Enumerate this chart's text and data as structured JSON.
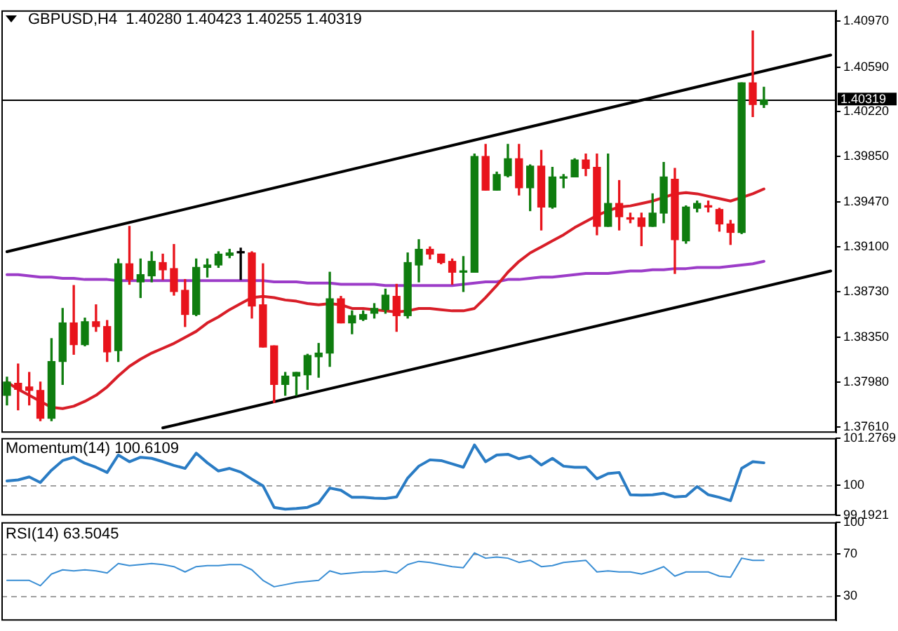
{
  "chart_data": [
    {
      "type": "candlestick",
      "title": "GBPUSD,H4  1.40280 1.40423 1.40255 1.40319",
      "categories": [
        null,
        null,
        null,
        null,
        null,
        null,
        null,
        null,
        null,
        null,
        null,
        null,
        null,
        null,
        null,
        null,
        null,
        null,
        null,
        null,
        null,
        null,
        null,
        null,
        null,
        null,
        null,
        null,
        null,
        null,
        null,
        null,
        null,
        null,
        null,
        null,
        null,
        null,
        null,
        null,
        null,
        null,
        null,
        null,
        null,
        null,
        null,
        null,
        null,
        null,
        null,
        null,
        null,
        null,
        null,
        null,
        null,
        null,
        null,
        null,
        null,
        null,
        null,
        null,
        null,
        null,
        null,
        null,
        null,
        null,
        null,
        null,
        null,
        null,
        null
      ],
      "ohlc": [
        [
          1.3787,
          1.3802,
          1.3779,
          1.3798
        ],
        [
          1.3797,
          1.3813,
          1.3775,
          1.3792
        ],
        [
          1.3794,
          1.3806,
          1.3779,
          1.3791
        ],
        [
          1.3791,
          1.3798,
          1.3766,
          1.3768
        ],
        [
          1.3768,
          1.3834,
          1.3766,
          1.3815
        ],
        [
          1.3815,
          1.3859,
          1.3796,
          1.3847
        ],
        [
          1.3847,
          1.3878,
          1.3821,
          1.3829
        ],
        [
          1.3829,
          1.3851,
          1.3828,
          1.3848
        ],
        [
          1.3848,
          1.3862,
          1.384,
          1.3844
        ],
        [
          1.3844,
          1.3849,
          1.3815,
          1.3823
        ],
        [
          1.3824,
          1.39,
          1.3815,
          1.3896
        ],
        [
          1.3896,
          1.3927,
          1.3879,
          1.3883
        ],
        [
          1.3881,
          1.39,
          1.3868,
          1.3887
        ],
        [
          1.3886,
          1.3906,
          1.3881,
          1.3898
        ],
        [
          1.3897,
          1.3904,
          1.3883,
          1.3891
        ],
        [
          1.3892,
          1.3912,
          1.387,
          1.3873
        ],
        [
          1.3874,
          1.3883,
          1.3844,
          1.3854
        ],
        [
          1.3854,
          1.39,
          1.3853,
          1.3893
        ],
        [
          1.3893,
          1.39,
          1.3885,
          1.3895
        ],
        [
          1.3895,
          1.3906,
          1.3893,
          1.3904
        ],
        [
          1.3903,
          1.3908,
          1.3901,
          1.3905
        ],
        [
          1.3905,
          1.3909,
          1.3883,
          1.3905
        ],
        [
          1.3905,
          1.3906,
          1.3851,
          1.3861
        ],
        [
          1.3862,
          1.3896,
          1.3827,
          1.3827
        ],
        [
          1.3828,
          1.3828,
          1.3781,
          1.3796
        ],
        [
          1.3796,
          1.3806,
          1.3787,
          1.3803
        ],
        [
          1.3803,
          1.3806,
          1.3787,
          1.3806
        ],
        [
          1.3804,
          1.3821,
          1.3792,
          1.382
        ],
        [
          1.3819,
          1.383,
          1.3802,
          1.3822
        ],
        [
          1.3822,
          1.3889,
          1.3811,
          1.3867
        ],
        [
          1.3867,
          1.3869,
          1.3847,
          1.3847
        ],
        [
          1.3847,
          1.3857,
          1.3838,
          1.3853
        ],
        [
          1.385,
          1.3857,
          1.3849,
          1.3854
        ],
        [
          1.3855,
          1.3863,
          1.3851,
          1.3859
        ],
        [
          1.3858,
          1.3875,
          1.3855,
          1.387
        ],
        [
          1.3869,
          1.3879,
          1.384,
          1.3853
        ],
        [
          1.3853,
          1.3905,
          1.3851,
          1.3897
        ],
        [
          1.3895,
          1.3916,
          1.3881,
          1.3908
        ],
        [
          1.3908,
          1.391,
          1.39,
          1.3904
        ],
        [
          1.3904,
          1.3904,
          1.3896,
          1.3897
        ],
        [
          1.3898,
          1.39,
          1.3879,
          1.3889
        ],
        [
          1.3889,
          1.3902,
          1.3873,
          1.389
        ],
        [
          1.3889,
          1.3987,
          1.3889,
          1.3985
        ],
        [
          1.3985,
          1.3995,
          1.3957,
          1.3957
        ],
        [
          1.3957,
          1.3972,
          1.3957,
          1.397
        ],
        [
          1.3969,
          1.3995,
          1.3968,
          1.3983
        ],
        [
          1.3983,
          1.3995,
          1.3953,
          1.3959
        ],
        [
          1.3959,
          1.3978,
          1.394,
          1.3977
        ],
        [
          1.3977,
          1.399,
          1.3924,
          1.3943
        ],
        [
          1.3943,
          1.3976,
          1.3942,
          1.3968
        ],
        [
          1.3967,
          1.397,
          1.3959,
          1.3968
        ],
        [
          1.3968,
          1.3983,
          1.3968,
          1.3982
        ],
        [
          1.3982,
          1.3987,
          1.3969,
          1.3975
        ],
        [
          1.3976,
          1.3987,
          1.392,
          1.3927
        ],
        [
          1.3927,
          1.3987,
          1.3927,
          1.3946
        ],
        [
          1.3946,
          1.3965,
          1.3924,
          1.3935
        ],
        [
          1.3934,
          1.3938,
          1.393,
          1.3933
        ],
        [
          1.3934,
          1.3938,
          1.3911,
          1.3927
        ],
        [
          1.3927,
          1.3954,
          1.3927,
          1.3938
        ],
        [
          1.3938,
          1.398,
          1.393,
          1.3968
        ],
        [
          1.3966,
          1.3975,
          1.3888,
          1.3916
        ],
        [
          1.3915,
          1.3944,
          1.3913,
          1.3943
        ],
        [
          1.3942,
          1.3948,
          1.3939,
          1.3946
        ],
        [
          1.3944,
          1.3948,
          1.3939,
          1.3943
        ],
        [
          1.3941,
          1.3942,
          1.3923,
          1.3929
        ],
        [
          1.3929,
          1.3932,
          1.3912,
          1.3922
        ],
        [
          1.3922,
          1.4046,
          1.3921,
          1.4046
        ],
        [
          1.4046,
          1.4089,
          1.4018,
          1.4028
        ],
        [
          1.4028,
          1.40423,
          1.40255,
          1.40319
        ],
        null,
        null,
        null,
        null,
        null,
        null
      ],
      "colors": [
        "#0f7d0f",
        "#e8141c",
        "#e8141c",
        "#e8141c",
        "#0f7d0f",
        "#0f7d0f",
        "#e8141c",
        "#0f7d0f",
        "#e8141c",
        "#e8141c",
        "#0f7d0f",
        "#e8141c",
        "#0f7d0f",
        "#0f7d0f",
        "#e8141c",
        "#e8141c",
        "#e8141c",
        "#0f7d0f",
        "#0f7d0f",
        "#0f7d0f",
        "#0f7d0f",
        "#000000",
        "#e8141c",
        "#e8141c",
        "#e8141c",
        "#0f7d0f",
        "#0f7d0f",
        "#0f7d0f",
        "#0f7d0f",
        "#0f7d0f",
        "#e8141c",
        "#0f7d0f",
        "#0f7d0f",
        "#0f7d0f",
        "#0f7d0f",
        "#e8141c",
        "#0f7d0f",
        "#0f7d0f",
        "#e8141c",
        "#e8141c",
        "#e8141c",
        "#0f7d0f",
        "#0f7d0f",
        "#e8141c",
        "#0f7d0f",
        "#0f7d0f",
        "#e8141c",
        "#0f7d0f",
        "#e8141c",
        "#0f7d0f",
        "#0f7d0f",
        "#0f7d0f",
        "#e8141c",
        "#e8141c",
        "#0f7d0f",
        "#e8141c",
        "#e8141c",
        "#e8141c",
        "#0f7d0f",
        "#0f7d0f",
        "#e8141c",
        "#0f7d0f",
        "#0f7d0f",
        "#e8141c",
        "#e8141c",
        "#e8141c",
        "#0f7d0f",
        "#e8141c",
        "#0f7d0f",
        null,
        null,
        null,
        null,
        null,
        null
      ],
      "series": [
        {
          "type": "line",
          "color": "#d81e28",
          "values": [
            1.3798,
            1.3792,
            1.3787,
            1.3782,
            1.3777,
            1.3776,
            1.3778,
            1.3782,
            1.3787,
            1.3794,
            1.3803,
            1.3811,
            1.3817,
            1.3822,
            1.3826,
            1.383,
            1.3835,
            1.384,
            1.3847,
            1.3852,
            1.3858,
            1.3863,
            1.3868,
            1.3869,
            1.3868,
            1.3866,
            1.3865,
            1.3863,
            1.3862,
            1.3863,
            1.3862,
            1.3859,
            1.3859,
            1.3858,
            1.3857,
            1.3856,
            1.3857,
            1.3859,
            1.3859,
            1.3858,
            1.3857,
            1.3857,
            1.3859,
            1.3868,
            1.3878,
            1.3889,
            1.3898,
            1.3905,
            1.391,
            1.3915,
            1.392,
            1.3926,
            1.3931,
            1.3936,
            1.394,
            1.3943,
            1.3944,
            1.3946,
            1.3948,
            1.3951,
            1.3954,
            1.3955,
            1.3954,
            1.3952,
            1.395,
            1.3948,
            1.3951,
            1.3954,
            1.3958,
            null,
            null,
            null,
            null,
            null,
            null
          ]
        },
        {
          "type": "line",
          "color": "#9c3cc8",
          "values": [
            1.3887,
            1.3887,
            1.3886,
            1.3885,
            1.3885,
            1.3884,
            1.3884,
            1.3883,
            1.3883,
            1.3883,
            1.3882,
            1.3882,
            1.3882,
            1.3882,
            1.3882,
            1.3882,
            1.3882,
            1.3882,
            1.3882,
            1.3882,
            1.3882,
            1.3882,
            1.3882,
            1.3882,
            1.3881,
            1.3881,
            1.3881,
            1.388,
            1.388,
            1.388,
            1.3879,
            1.3879,
            1.3879,
            1.3879,
            1.3878,
            1.3878,
            1.3878,
            1.3878,
            1.3878,
            1.3878,
            1.3878,
            1.3879,
            1.388,
            1.3881,
            1.3881,
            1.3883,
            1.3883,
            1.3884,
            1.3885,
            1.3885,
            1.3886,
            1.3887,
            1.3888,
            1.3888,
            1.3888,
            1.3889,
            1.389,
            1.389,
            1.3891,
            1.3891,
            1.3892,
            1.3892,
            1.3893,
            1.3893,
            1.3893,
            1.3894,
            1.3895,
            1.3896,
            1.3898,
            null,
            null,
            null,
            null,
            null,
            null
          ]
        },
        {
          "type": "line",
          "color": "#000000",
          "values": [
            1.3906,
            null,
            null,
            null,
            null,
            null,
            null,
            null,
            null,
            null,
            null,
            null,
            null,
            null,
            null,
            null,
            null,
            null,
            null,
            null,
            null,
            null,
            null,
            null,
            null,
            null,
            null,
            null,
            null,
            null,
            null,
            null,
            null,
            null,
            null,
            null,
            null,
            null,
            null,
            null,
            null,
            null,
            null,
            null,
            null,
            null,
            null,
            null,
            null,
            null,
            null,
            null,
            null,
            null,
            null,
            null,
            null,
            null,
            null,
            null,
            null,
            null,
            null,
            null,
            null,
            null,
            null,
            null,
            null,
            null,
            null,
            null,
            null,
            null,
            1.4069
          ]
        },
        {
          "type": "line",
          "color": "#000000",
          "values": [
            null,
            null,
            null,
            null,
            null,
            null,
            null,
            null,
            null,
            null,
            null,
            null,
            null,
            null,
            1.376,
            null,
            null,
            null,
            null,
            null,
            null,
            null,
            null,
            null,
            null,
            null,
            null,
            null,
            null,
            null,
            null,
            null,
            null,
            null,
            null,
            null,
            null,
            null,
            null,
            null,
            null,
            null,
            null,
            null,
            null,
            null,
            null,
            null,
            null,
            null,
            null,
            null,
            null,
            null,
            null,
            null,
            null,
            null,
            null,
            null,
            null,
            null,
            null,
            null,
            null,
            null,
            null,
            null,
            null,
            null,
            null,
            null,
            null,
            null,
            1.389
          ]
        }
      ],
      "ylim": [
        1.3756,
        1.4106
      ],
      "yticks": [
        {
          "value": 1.3761,
          "label": "1.37610"
        },
        {
          "value": 1.3798,
          "label": "1.37980"
        },
        {
          "value": 1.3835,
          "label": "1.38350"
        },
        {
          "value": 1.3873,
          "label": "1.38730"
        },
        {
          "value": 1.391,
          "label": "1.39100"
        },
        {
          "value": 1.3947,
          "label": "1.39470"
        },
        {
          "value": 1.3985,
          "label": "1.39850"
        },
        {
          "value": 1.4022,
          "label": "1.40220"
        },
        {
          "value": 1.4059,
          "label": "1.40590"
        },
        {
          "value": 1.4097,
          "label": "1.40970"
        }
      ],
      "ref_lines": [
        {
          "axis": "y",
          "value": 1.40319,
          "label": "1.40319",
          "color": "#000000",
          "line_style": "solid"
        }
      ],
      "tick_labels": "y"
    },
    {
      "type": "line",
      "title": "Momentum(14) 100.6109",
      "categories": [
        null,
        null,
        null,
        null,
        null,
        null,
        null,
        null,
        null,
        null,
        null,
        null,
        null,
        null,
        null,
        null,
        null,
        null,
        null,
        null,
        null,
        null,
        null,
        null,
        null,
        null,
        null,
        null,
        null,
        null,
        null,
        null,
        null,
        null,
        null,
        null,
        null,
        null,
        null,
        null,
        null,
        null,
        null,
        null,
        null,
        null,
        null,
        null,
        null,
        null,
        null,
        null,
        null,
        null,
        null,
        null,
        null,
        null,
        null,
        null,
        null,
        null,
        null,
        null,
        null,
        null,
        null,
        null,
        null,
        null,
        null,
        null,
        null,
        null,
        null
      ],
      "series": [
        {
          "color": "#2a7cc4",
          "values": [
            100.12,
            100.15,
            100.23,
            100.08,
            100.41,
            100.67,
            100.76,
            100.6,
            100.49,
            100.35,
            100.82,
            100.64,
            100.76,
            100.73,
            100.64,
            100.54,
            100.46,
            100.87,
            100.61,
            100.39,
            100.46,
            100.36,
            100.17,
            99.99,
            99.41,
            99.36,
            99.38,
            99.41,
            99.53,
            99.93,
            99.87,
            99.68,
            99.68,
            99.66,
            99.65,
            99.69,
            100.2,
            100.52,
            100.69,
            100.67,
            100.58,
            100.49,
            101.09,
            100.64,
            100.82,
            100.84,
            100.72,
            100.79,
            100.55,
            100.73,
            100.52,
            100.49,
            100.49,
            100.18,
            100.32,
            100.35,
            99.75,
            99.74,
            99.75,
            99.79,
            99.69,
            99.71,
            99.97,
            99.75,
            99.68,
            99.59,
            100.46,
            100.64,
            100.61,
            null,
            null,
            null,
            null,
            null,
            null
          ]
        }
      ],
      "ylim": [
        99.1921,
        101.2769
      ],
      "yticks": [
        99.1921,
        100,
        101.2769
      ],
      "ref_lines": [
        {
          "axis": "y",
          "value": 100,
          "color": "#a0a0a0",
          "line_style": "dashed"
        }
      ],
      "tick_labels": "y"
    },
    {
      "type": "line",
      "title": "RSI(14) 63.5045",
      "categories": [
        null,
        null,
        null,
        null,
        null,
        null,
        null,
        null,
        null,
        null,
        null,
        null,
        null,
        null,
        null,
        null,
        null,
        null,
        null,
        null,
        null,
        null,
        null,
        null,
        null,
        null,
        null,
        null,
        null,
        null,
        null,
        null,
        null,
        null,
        null,
        null,
        null,
        null,
        null,
        null,
        null,
        null,
        null,
        null,
        null,
        null,
        null,
        null,
        null,
        null,
        null,
        null,
        null,
        null,
        null,
        null,
        null,
        null,
        null,
        null,
        null,
        null,
        null,
        null,
        null,
        null,
        null,
        null,
        null,
        null,
        null,
        null,
        null,
        null,
        null
      ],
      "series": [
        {
          "color": "#3a8ed4",
          "values": [
            45,
            45,
            45,
            40,
            51,
            55,
            54,
            55,
            54,
            52,
            61,
            59,
            60,
            61,
            60,
            58,
            53,
            58,
            59,
            59,
            60,
            60,
            55,
            45,
            39,
            41,
            43,
            44,
            45,
            54,
            51,
            52,
            53,
            53,
            54,
            52,
            60,
            63,
            62,
            60,
            58,
            57,
            71,
            66,
            67,
            66,
            62,
            64,
            58,
            59,
            62,
            63,
            64,
            53,
            54,
            53,
            53,
            51,
            54,
            58,
            49,
            53,
            53,
            53,
            49,
            48,
            66,
            64,
            64,
            null,
            null,
            null,
            null,
            null,
            null
          ]
        }
      ],
      "ylim": [
        7,
        100
      ],
      "yticks": [
        30,
        70,
        100
      ],
      "ref_lines": [
        {
          "axis": "y",
          "value": 30,
          "color": "#a0a0a0",
          "line_style": "dashed"
        },
        {
          "axis": "y",
          "value": 70,
          "color": "#a0a0a0",
          "line_style": "dashed"
        }
      ],
      "tick_labels": "y"
    }
  ]
}
